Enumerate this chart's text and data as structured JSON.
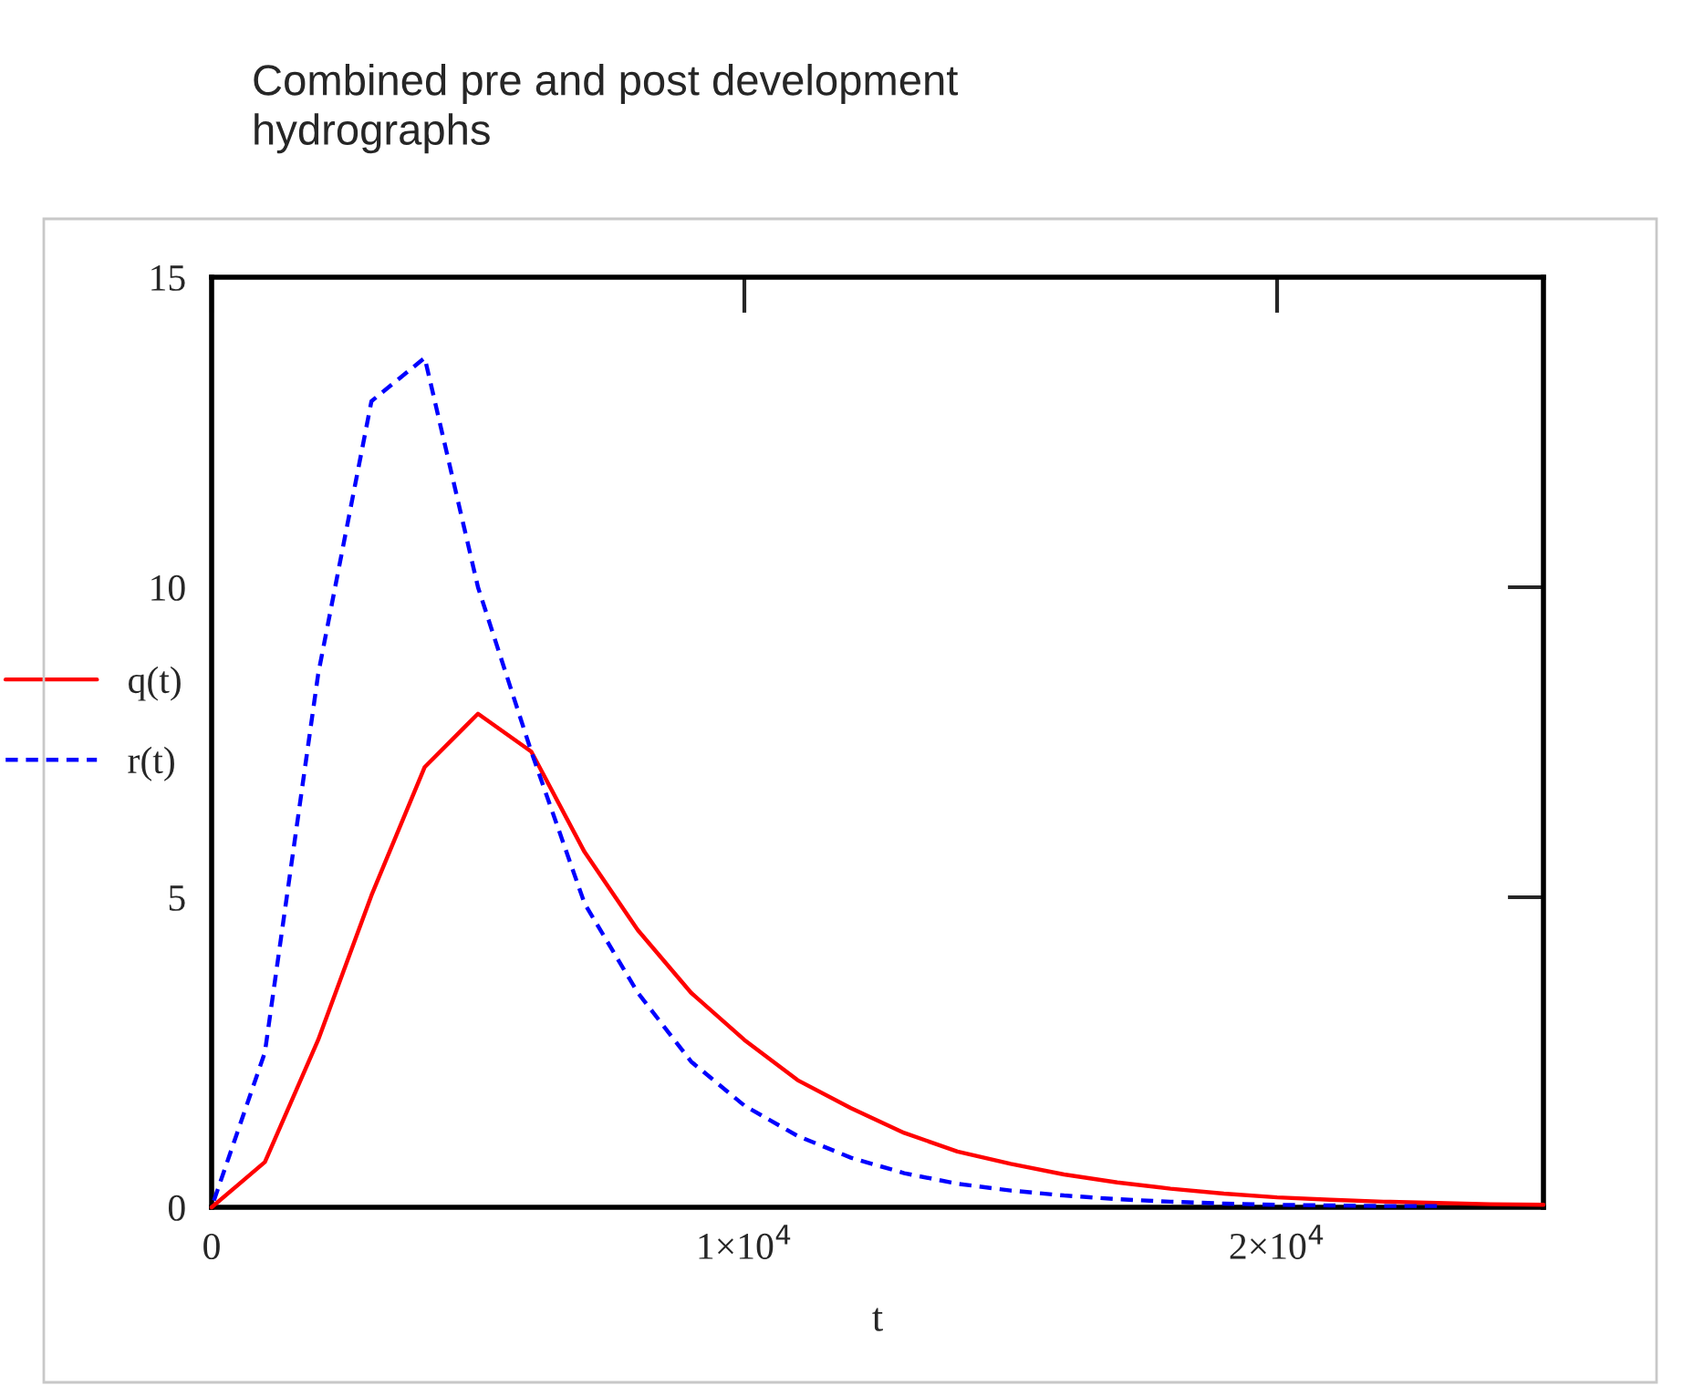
{
  "chart_data": {
    "type": "line",
    "title": "Combined pre and post development\nhydrographs",
    "xlabel": "t",
    "x": [
      0,
      1000,
      2000,
      3000,
      4000,
      5000,
      6000,
      7000,
      8000,
      9000,
      10000,
      11000,
      12000,
      13000,
      14000,
      15000,
      16000,
      17000,
      18000,
      19000,
      20000,
      21000,
      22000,
      23000,
      24000,
      25000
    ],
    "series": [
      {
        "name": "q(t)",
        "color": "#ff0000",
        "line_style": "solid",
        "values": [
          0,
          0.73,
          2.7,
          5.03,
          7.1,
          7.96,
          7.35,
          5.73,
          4.47,
          3.46,
          2.7,
          2.05,
          1.6,
          1.2,
          0.9,
          0.7,
          0.53,
          0.4,
          0.3,
          0.22,
          0.16,
          0.12,
          0.09,
          0.07,
          0.05,
          0.04
        ]
      },
      {
        "name": "r(t)",
        "color": "#0000ff",
        "line_style": "dashed",
        "values": [
          0,
          2.5,
          8.6,
          13.0,
          13.7,
          10.0,
          7.35,
          4.9,
          3.46,
          2.35,
          1.64,
          1.15,
          0.8,
          0.55,
          0.38,
          0.27,
          0.19,
          0.13,
          0.09,
          0.06,
          0.04,
          0.03,
          0.02,
          0.02,
          null,
          null
        ]
      }
    ],
    "xlim": [
      0,
      25000
    ],
    "xticks": [
      0,
      {
        "value": 10000,
        "label": "1×10$^{4}$"
      },
      {
        "value": 20000,
        "label": "2×10$^{4}$"
      }
    ],
    "ylim": [
      0,
      15
    ],
    "yticks": [
      0,
      5,
      10,
      15
    ],
    "grid": false,
    "legend": "left"
  }
}
